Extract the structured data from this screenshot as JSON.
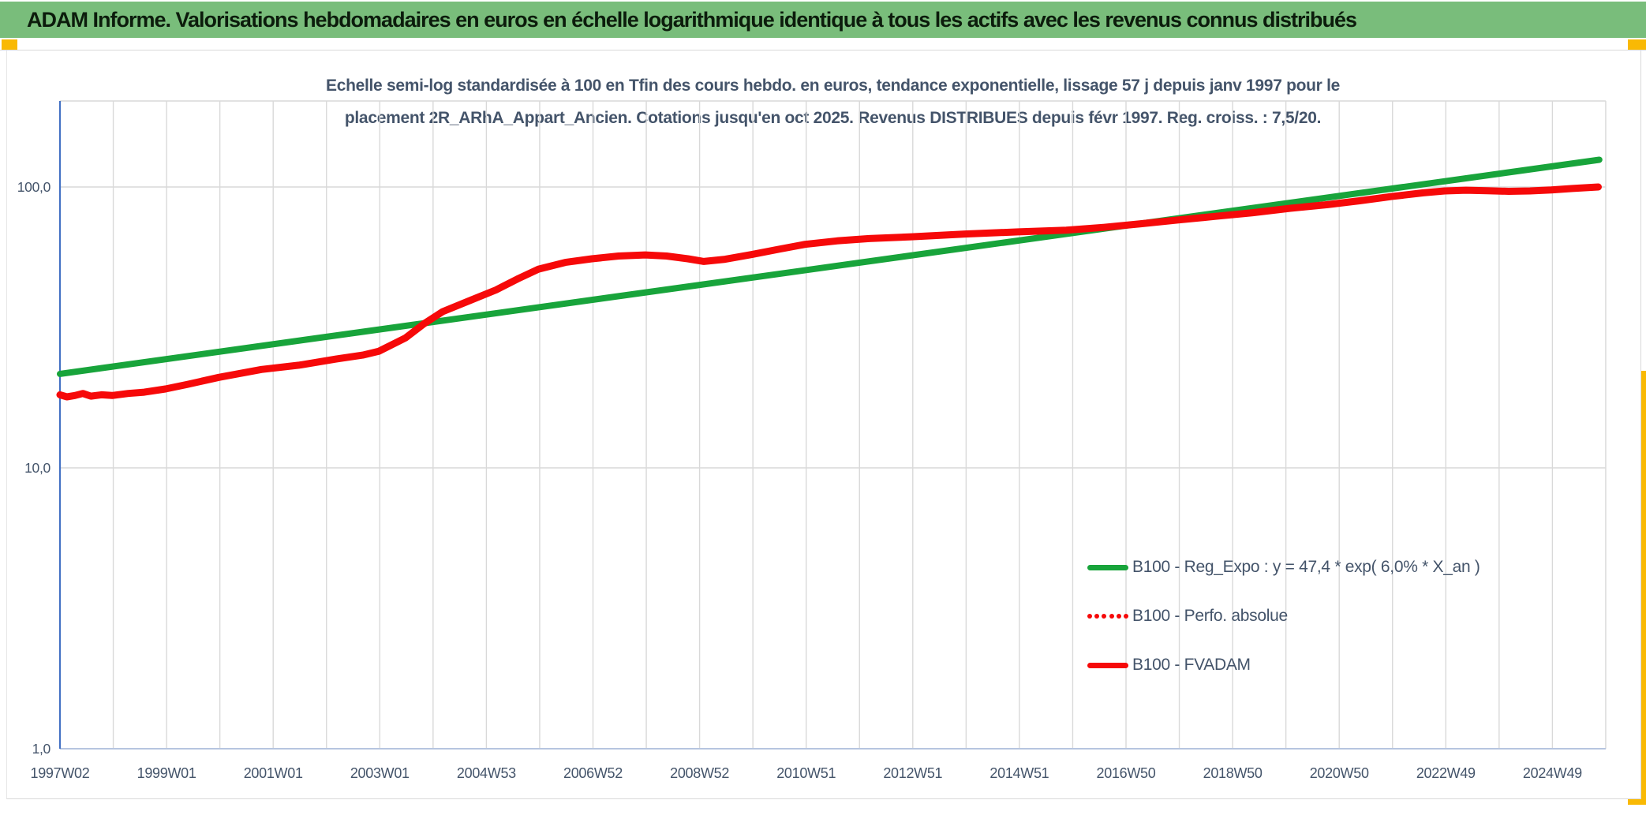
{
  "header": {
    "title": "ADAM Informe. Valorisations hebdomadaires en euros en échelle logarithmique identique à tous les actifs avec les revenus connus distribués"
  },
  "chart": {
    "title_line1": "Echelle semi-log standardisée à 100 en Tfin des cours hebdo. en euros, tendance exponentielle, lissage 57 j depuis janv 1997 pour le",
    "title_line2": "placement 2R_ARhA_Appart_Ancien. Cotations jusqu'en oct 2025. Revenus DISTRIBUES depuis févr 1997. Reg. croiss. : 7,5/20.",
    "colors": {
      "banner_green": "#79bd7b",
      "accent_yellow": "#f9b904",
      "series_green": "#18a43b",
      "series_red": "#f60909",
      "axis_blue": "#4472c4",
      "gridline_gray": "#d9d9d9",
      "bottom_axis_blue": "#b6c5e0",
      "text_blue_gray": "#44546a"
    }
  },
  "legend": {
    "items": [
      {
        "label": "B100 - Reg_Expo : y = 47,4 * exp( 6,0% *  X_an )",
        "color": "#18a43b",
        "style": "solid"
      },
      {
        "label": "B100 - Perfo. absolue",
        "color": "#f60909",
        "style": "dotted"
      },
      {
        "label": "B100 - FVADAM",
        "color": "#f60909",
        "style": "solid"
      }
    ]
  },
  "chart_data": {
    "type": "line",
    "x_axis": {
      "tick_labels": [
        "1997W02",
        "1999W01",
        "2001W01",
        "2003W01",
        "2004W53",
        "2006W52",
        "2008W52",
        "2010W51",
        "2012W51",
        "2014W51",
        "2016W50",
        "2018W50",
        "2020W50",
        "2022W49",
        "2024W49"
      ],
      "unit": "ISO week (year + week number)",
      "range_years": [
        1997.02,
        2025.9
      ]
    },
    "y_axis": {
      "scale": "log",
      "ticks": [
        {
          "label": "100,0",
          "value": 100
        },
        {
          "label": "10,0",
          "value": 10
        },
        {
          "label": "1,0",
          "value": 1
        }
      ],
      "range": [
        1,
        202
      ],
      "grid": true
    },
    "series": [
      {
        "name": "B100 - Reg_Expo : y = 47,4 * exp( 6,0% *  X_an )",
        "color": "#18a43b",
        "style": "solid",
        "width": 8,
        "points": [
          [
            1997.02,
            21.6
          ],
          [
            2025.9,
            125.0
          ]
        ]
      },
      {
        "name": "B100 - Perfo. absolue",
        "color": "#f60909",
        "style": "dotted",
        "width": 8,
        "points": [],
        "note": "dotted series coincides with B100 - FVADAM and is not separately visible in the plot"
      },
      {
        "name": "B100 - FVADAM",
        "color": "#f60909",
        "style": "solid",
        "width": 9,
        "points": [
          [
            1997.02,
            18.2
          ],
          [
            1997.15,
            17.9
          ],
          [
            1997.3,
            18.1
          ],
          [
            1997.45,
            18.4
          ],
          [
            1997.6,
            18.0
          ],
          [
            1997.8,
            18.2
          ],
          [
            1998.0,
            18.1
          ],
          [
            1998.3,
            18.4
          ],
          [
            1998.6,
            18.6
          ],
          [
            1999.0,
            19.1
          ],
          [
            1999.4,
            19.8
          ],
          [
            2000.0,
            21.0
          ],
          [
            2000.8,
            22.4
          ],
          [
            2001.5,
            23.2
          ],
          [
            2002.2,
            24.4
          ],
          [
            2002.7,
            25.2
          ],
          [
            2003.0,
            26.0
          ],
          [
            2003.5,
            29.0
          ],
          [
            2003.85,
            32.6
          ],
          [
            2004.2,
            36.0
          ],
          [
            2004.75,
            39.7
          ],
          [
            2005.2,
            43.0
          ],
          [
            2005.6,
            47.0
          ],
          [
            2006.0,
            51.0
          ],
          [
            2006.5,
            53.9
          ],
          [
            2007.0,
            55.5
          ],
          [
            2007.5,
            56.8
          ],
          [
            2008.0,
            57.3
          ],
          [
            2008.4,
            56.8
          ],
          [
            2008.8,
            55.5
          ],
          [
            2009.1,
            54.3
          ],
          [
            2009.5,
            55.3
          ],
          [
            2010.0,
            57.5
          ],
          [
            2010.5,
            60.0
          ],
          [
            2011.0,
            62.5
          ],
          [
            2011.6,
            64.3
          ],
          [
            2012.2,
            65.5
          ],
          [
            2013.0,
            66.5
          ],
          [
            2014.0,
            68.0
          ],
          [
            2015.0,
            69.2
          ],
          [
            2015.9,
            70.2
          ],
          [
            2016.6,
            71.8
          ],
          [
            2017.3,
            74.0
          ],
          [
            2018.0,
            76.3
          ],
          [
            2018.7,
            78.6
          ],
          [
            2019.4,
            81.0
          ],
          [
            2020.1,
            84.0
          ],
          [
            2020.8,
            86.5
          ],
          [
            2021.4,
            89.3
          ],
          [
            2022.0,
            92.5
          ],
          [
            2022.6,
            95.3
          ],
          [
            2023.0,
            96.8
          ],
          [
            2023.4,
            97.4
          ],
          [
            2023.8,
            97.0
          ],
          [
            2024.2,
            96.5
          ],
          [
            2024.6,
            96.8
          ],
          [
            2025.0,
            97.6
          ],
          [
            2025.4,
            98.8
          ],
          [
            2025.88,
            100.0
          ]
        ]
      }
    ],
    "title": "Echelle semi-log standardisée à 100 en Tfin des cours hebdo. en euros, tendance exponentielle, lissage 57 j depuis janv 1997 pour le placement 2R_ARhA_Appart_Ancien. Cotations jusqu'en oct 2025. Revenus DISTRIBUES depuis févr 1997. Reg. croiss. : 7,5/20.",
    "legend_position": "inside lower right"
  }
}
